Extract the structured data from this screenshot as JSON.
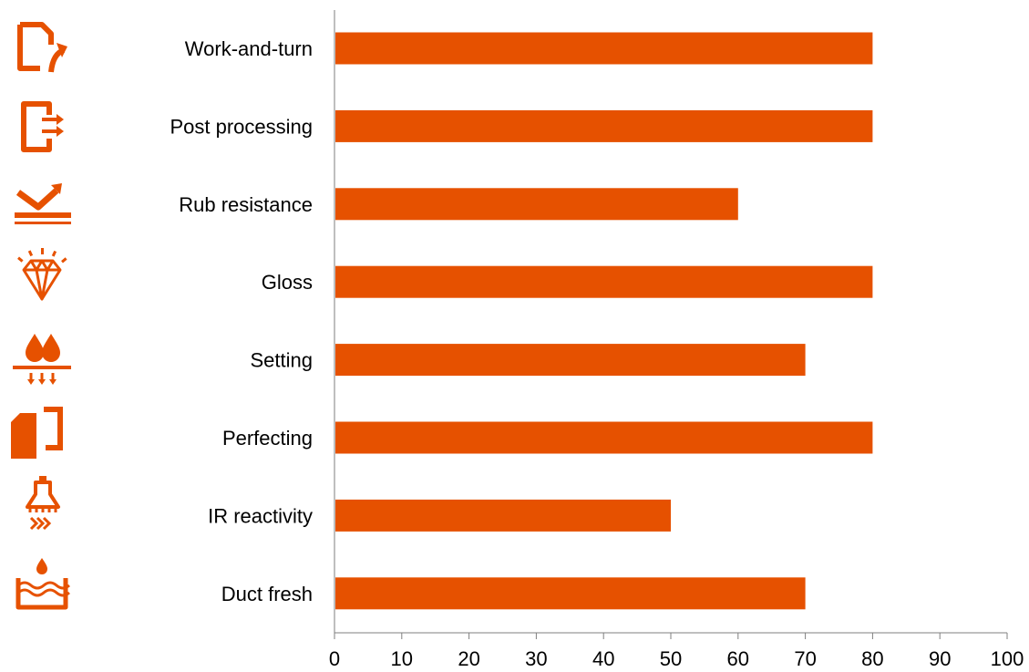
{
  "chart_data": {
    "type": "bar",
    "orientation": "horizontal",
    "title": "",
    "xlabel": "",
    "ylabel": "",
    "categories": [
      "Work-and-turn",
      "Post processing",
      "Rub resistance",
      "Gloss",
      "Setting",
      "Perfecting",
      "IR reactivity",
      "Duct fresh"
    ],
    "values": [
      80,
      80,
      60,
      80,
      70,
      80,
      50,
      70
    ],
    "xlim": [
      0,
      100
    ],
    "xticks": [
      "0",
      "10",
      "20",
      "30",
      "40",
      "50",
      "60",
      "70",
      "80",
      "90",
      "100"
    ],
    "grid": false,
    "legend": "none",
    "bar_color": "#E65100"
  },
  "icons": [
    "work-and-turn",
    "post-processing",
    "rub-resistance",
    "gloss",
    "setting",
    "perfecting",
    "ir-reactivity",
    "duct-fresh"
  ],
  "accent_color": "#E65100"
}
